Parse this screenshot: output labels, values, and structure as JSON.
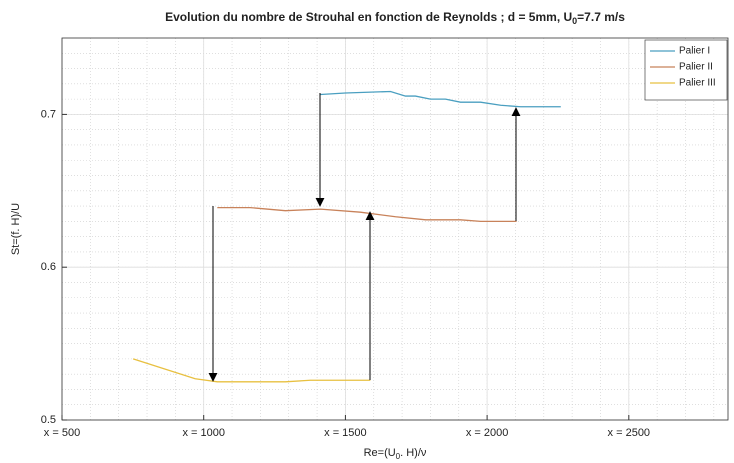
{
  "chart_data": {
    "type": "line",
    "title": [
      "Evolution du nombre de Strouhal en fonction de Reynolds ; d = 5mm, U",
      "0",
      "=7.7 m/s"
    ],
    "xlabel": [
      "Re=(U",
      "0",
      ". H)/ν"
    ],
    "ylabel": "St=(f. H)/U",
    "xlim": [
      500,
      2850
    ],
    "ylim": [
      0.5,
      0.75
    ],
    "xticks": [
      {
        "value": 500,
        "label": "x = 500"
      },
      {
        "value": 1000,
        "label": "x = 1000"
      },
      {
        "value": 1500,
        "label": "x = 1500"
      },
      {
        "value": 2000,
        "label": "x = 2000"
      },
      {
        "value": 2500,
        "label": "x = 2500"
      }
    ],
    "yticks": [
      0.5,
      0.6,
      0.7
    ],
    "grid": true,
    "minor_grid": true,
    "legend": "upper right",
    "series": [
      {
        "name": "Palier I",
        "color": "#4a9fc0",
        "x": [
          1412,
          1500,
          1659,
          1712,
          1747,
          1800,
          1853,
          1906,
          1977,
          2048,
          2118,
          2260
        ],
        "values": [
          0.713,
          0.714,
          0.715,
          0.712,
          0.712,
          0.71,
          0.71,
          0.708,
          0.708,
          0.706,
          0.705,
          0.705
        ]
      },
      {
        "name": "Palier II",
        "color": "#c8825a",
        "x": [
          1048,
          1164,
          1288,
          1412,
          1553,
          1677,
          1783,
          1906,
          1977,
          2104
        ],
        "values": [
          0.639,
          0.639,
          0.637,
          0.638,
          0.636,
          0.633,
          0.631,
          0.631,
          0.63,
          0.63
        ]
      },
      {
        "name": "Palier III",
        "color": "#e8c040",
        "x": [
          751,
          970,
          1048,
          1288,
          1376,
          1588
        ],
        "values": [
          0.54,
          0.527,
          0.525,
          0.525,
          0.526,
          0.526
        ]
      }
    ]
  }
}
